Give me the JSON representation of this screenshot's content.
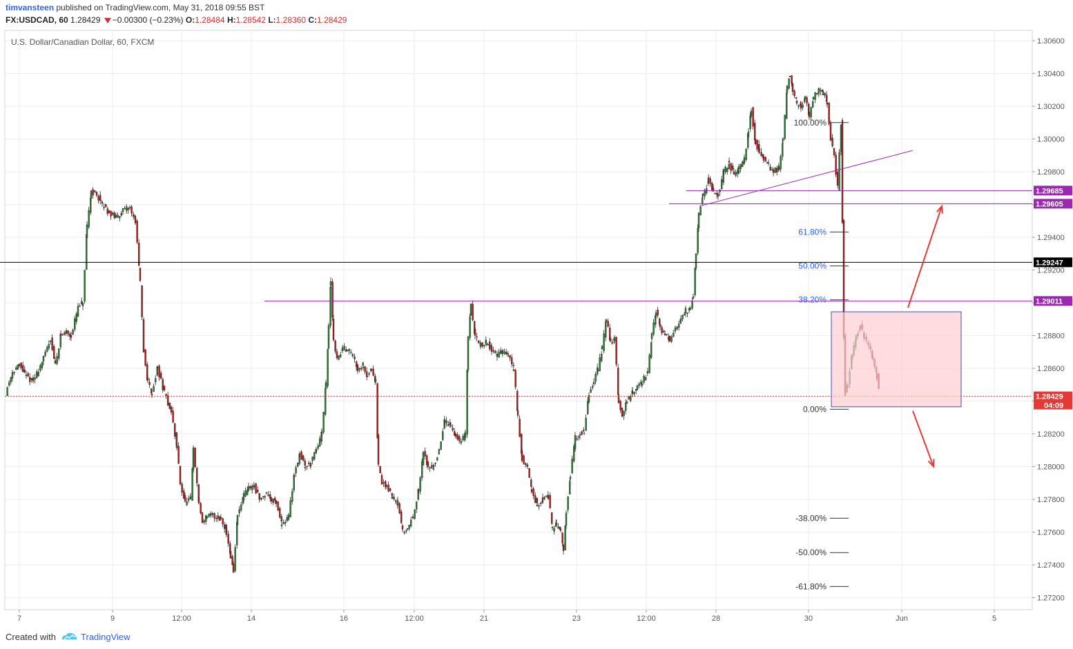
{
  "header": {
    "author": "timvansteen",
    "published_text": "published on TradingView.com, May 31, 2018 09:55 BST",
    "symbol": "FX:USDCAD, 60",
    "last": "1.28429",
    "change": "−0.00300 (−0.23%)",
    "o_label": "O:",
    "o_value": "1.28484",
    "h_label": "H:",
    "h_value": "1.28542",
    "l_label": "L:",
    "l_value": "1.28360",
    "c_label": "C:",
    "c_value": "1.28429"
  },
  "footer": {
    "created_with": "Created with",
    "brand": "TradingView"
  },
  "colors": {
    "up": "#2e7d32",
    "down": "#b71c1c",
    "level": "#9c27b0",
    "fib": "#2962ff",
    "arrow": "#e53935",
    "box": "#ffcdd2"
  },
  "chart_data": {
    "type": "candlestick",
    "title": "U.S. Dollar/Canadian Dollar, 60, FXCM",
    "ylim": [
      1.2712,
      1.3066
    ],
    "y_ticks": [
      "1.30600",
      "1.30400",
      "1.30200",
      "1.30000",
      "1.29800",
      "1.29600",
      "1.29400",
      "1.29200",
      "1.29000",
      "1.28800",
      "1.28600",
      "1.28400",
      "1.28200",
      "1.28000",
      "1.27800",
      "1.27600",
      "1.27400",
      "1.27200"
    ],
    "x_ticks": [
      "7",
      "9",
      "12:00",
      "14",
      "16",
      "12:00",
      "21",
      "23",
      "12:00",
      "28",
      "30",
      "Jun",
      "5"
    ],
    "grid": true,
    "price_path": [
      [
        0,
        1.2845
      ],
      [
        10,
        1.2858
      ],
      [
        20,
        1.2862
      ],
      [
        30,
        1.2855
      ],
      [
        40,
        1.2852
      ],
      [
        55,
        1.2866
      ],
      [
        65,
        1.2878
      ],
      [
        72,
        1.2862
      ],
      [
        80,
        1.288
      ],
      [
        88,
        1.2882
      ],
      [
        95,
        1.288
      ],
      [
        105,
        1.2897
      ],
      [
        112,
        1.29
      ],
      [
        118,
        1.2946
      ],
      [
        124,
        1.2968
      ],
      [
        132,
        1.2966
      ],
      [
        140,
        1.296
      ],
      [
        150,
        1.2955
      ],
      [
        160,
        1.2952
      ],
      [
        170,
        1.2956
      ],
      [
        180,
        1.2958
      ],
      [
        188,
        1.295
      ],
      [
        195,
        1.2912
      ],
      [
        200,
        1.287
      ],
      [
        206,
        1.2852
      ],
      [
        212,
        1.2845
      ],
      [
        220,
        1.286
      ],
      [
        230,
        1.2845
      ],
      [
        240,
        1.2833
      ],
      [
        248,
        1.2812
      ],
      [
        253,
        1.279
      ],
      [
        260,
        1.2778
      ],
      [
        268,
        1.278
      ],
      [
        272,
        1.281
      ],
      [
        280,
        1.2778
      ],
      [
        285,
        1.2766
      ],
      [
        292,
        1.277
      ],
      [
        300,
        1.277
      ],
      [
        312,
        1.2768
      ],
      [
        320,
        1.276
      ],
      [
        326,
        1.2745
      ],
      [
        330,
        1.2736
      ],
      [
        336,
        1.277
      ],
      [
        345,
        1.2782
      ],
      [
        352,
        1.2787
      ],
      [
        360,
        1.2788
      ],
      [
        368,
        1.278
      ],
      [
        378,
        1.2784
      ],
      [
        385,
        1.278
      ],
      [
        392,
        1.2778
      ],
      [
        400,
        1.2765
      ],
      [
        410,
        1.277
      ],
      [
        418,
        1.2795
      ],
      [
        426,
        1.2808
      ],
      [
        434,
        1.28
      ],
      [
        442,
        1.2802
      ],
      [
        450,
        1.281
      ],
      [
        458,
        1.282
      ],
      [
        464,
        1.285
      ],
      [
        468,
        1.2885
      ],
      [
        471,
        1.2913
      ],
      [
        475,
        1.2878
      ],
      [
        480,
        1.2865
      ],
      [
        488,
        1.2872
      ],
      [
        495,
        1.2872
      ],
      [
        503,
        1.2868
      ],
      [
        510,
        1.286
      ],
      [
        518,
        1.2862
      ],
      [
        524,
        1.2855
      ],
      [
        530,
        1.286
      ],
      [
        536,
        1.2852
      ],
      [
        540,
        1.28
      ],
      [
        545,
        1.279
      ],
      [
        552,
        1.2788
      ],
      [
        560,
        1.2782
      ],
      [
        568,
        1.2778
      ],
      [
        575,
        1.276
      ],
      [
        582,
        1.2762
      ],
      [
        590,
        1.277
      ],
      [
        598,
        1.2785
      ],
      [
        605,
        1.2808
      ],
      [
        612,
        1.28
      ],
      [
        620,
        1.28
      ],
      [
        628,
        1.281
      ],
      [
        636,
        1.2828
      ],
      [
        645,
        1.2825
      ],
      [
        652,
        1.2818
      ],
      [
        660,
        1.2815
      ],
      [
        666,
        1.282
      ],
      [
        670,
        1.288
      ],
      [
        674,
        1.2898
      ],
      [
        680,
        1.288
      ],
      [
        688,
        1.2874
      ],
      [
        696,
        1.2876
      ],
      [
        704,
        1.2872
      ],
      [
        712,
        1.2868
      ],
      [
        720,
        1.287
      ],
      [
        728,
        1.2868
      ],
      [
        736,
        1.286
      ],
      [
        742,
        1.283
      ],
      [
        748,
        1.2805
      ],
      [
        756,
        1.28
      ],
      [
        762,
        1.2785
      ],
      [
        770,
        1.2776
      ],
      [
        778,
        1.278
      ],
      [
        786,
        1.2782
      ],
      [
        792,
        1.2762
      ],
      [
        798,
        1.2765
      ],
      [
        804,
        1.276
      ],
      [
        808,
        1.2748
      ],
      [
        812,
        1.2772
      ],
      [
        818,
        1.2795
      ],
      [
        825,
        1.2818
      ],
      [
        832,
        1.282
      ],
      [
        838,
        1.2822
      ],
      [
        845,
        1.2845
      ],
      [
        852,
        1.2852
      ],
      [
        858,
        1.286
      ],
      [
        864,
        1.2872
      ],
      [
        870,
        1.289
      ],
      [
        876,
        1.2876
      ],
      [
        882,
        1.2878
      ],
      [
        888,
        1.284
      ],
      [
        893,
        1.2832
      ],
      [
        900,
        1.284
      ],
      [
        908,
        1.2845
      ],
      [
        915,
        1.2848
      ],
      [
        922,
        1.2852
      ],
      [
        930,
        1.2858
      ],
      [
        936,
        1.288
      ],
      [
        942,
        1.2895
      ],
      [
        948,
        1.2885
      ],
      [
        955,
        1.288
      ],
      [
        962,
        1.2878
      ],
      [
        970,
        1.2885
      ],
      [
        978,
        1.289
      ],
      [
        985,
        1.2895
      ],
      [
        992,
        1.2895
      ],
      [
        996,
        1.2905
      ],
      [
        1000,
        1.293
      ],
      [
        1004,
        1.2955
      ],
      [
        1010,
        1.2965
      ],
      [
        1018,
        1.2975
      ],
      [
        1025,
        1.2968
      ],
      [
        1032,
        1.2966
      ],
      [
        1040,
        1.298
      ],
      [
        1048,
        1.2985
      ],
      [
        1055,
        1.2978
      ],
      [
        1062,
        1.2982
      ],
      [
        1070,
        1.2988
      ],
      [
        1076,
        1.3005
      ],
      [
        1080,
        1.3018
      ],
      [
        1086,
        1.2998
      ],
      [
        1092,
        1.2992
      ],
      [
        1098,
        1.2988
      ],
      [
        1105,
        1.2984
      ],
      [
        1112,
        1.298
      ],
      [
        1120,
        1.2982
      ],
      [
        1126,
        1.3
      ],
      [
        1132,
        1.3032
      ],
      [
        1136,
        1.304
      ],
      [
        1140,
        1.303
      ],
      [
        1146,
        1.3022
      ],
      [
        1152,
        1.302
      ],
      [
        1158,
        1.3025
      ],
      [
        1164,
        1.3015
      ],
      [
        1170,
        1.3025
      ],
      [
        1178,
        1.303
      ],
      [
        1184,
        1.3028
      ],
      [
        1190,
        1.3022
      ],
      [
        1195,
        1.3
      ],
      [
        1200,
        1.299
      ],
      [
        1205,
        1.297
      ],
      [
        1210,
        1.301
      ],
      [
        1212,
        1.295
      ],
      [
        1214,
        1.288
      ],
      [
        1216,
        1.2845
      ],
      [
        1220,
        1.285
      ],
      [
        1226,
        1.2868
      ],
      [
        1232,
        1.288
      ],
      [
        1238,
        1.2886
      ],
      [
        1244,
        1.2878
      ],
      [
        1250,
        1.2875
      ],
      [
        1256,
        1.2866
      ],
      [
        1262,
        1.2855
      ],
      [
        1266,
        1.2843
      ]
    ],
    "horizontal_levels": [
      {
        "value": "1.29685",
        "price": 1.29685,
        "color": "#9c27b0",
        "x_start": 994
      },
      {
        "value": "1.29605",
        "price": 1.29605,
        "color": "#9c27b0",
        "x_start": 969
      },
      {
        "value": "1.29247",
        "price": 1.29247,
        "color": "#000000",
        "x_start": 0
      },
      {
        "value": "1.29011",
        "price": 1.29011,
        "color": "#9c27b0",
        "x_start": 383
      }
    ],
    "last_price": {
      "value": "1.28429",
      "price": 1.28429,
      "countdown": "04:09",
      "color": "#e53935"
    },
    "trend_line": {
      "from": [
        1013,
        1.2959
      ],
      "to": [
        1322,
        1.2993
      ],
      "color": "#9c27b0"
    },
    "fib_levels": [
      {
        "label": "100.00%",
        "price": 1.301,
        "color": "#333333"
      },
      {
        "label": "61.80%",
        "price": 1.29432,
        "color": "#2962ff"
      },
      {
        "label": "50.00%",
        "price": 1.29225,
        "color": "#2962ff"
      },
      {
        "label": "38.20%",
        "price": 1.29018,
        "color": "#2962ff"
      },
      {
        "label": "0.00%",
        "price": 1.2835,
        "color": "#333333"
      },
      {
        "label": "-38.00%",
        "price": 1.27685,
        "color": "#333333"
      },
      {
        "label": "-50.00%",
        "price": 1.27475,
        "color": "#333333"
      },
      {
        "label": "-61.80%",
        "price": 1.27268,
        "color": "#333333"
      }
    ],
    "box": {
      "x_from": 1204,
      "x_to": 1392,
      "top": 1.28945,
      "bottom": 1.28365
    },
    "arrows": [
      {
        "from": [
          1315,
          1.2897
        ],
        "to": [
          1364,
          1.2959
        ]
      },
      {
        "from": [
          1322,
          1.2834
        ],
        "to": [
          1352,
          1.28
        ]
      }
    ]
  }
}
